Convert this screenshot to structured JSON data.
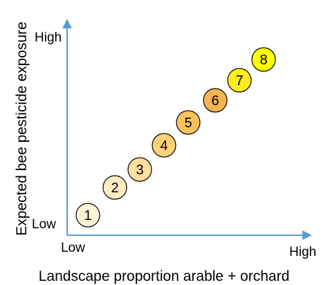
{
  "y_axis": {
    "title": "Expected bee pesticide exposure",
    "high_label": "High",
    "low_label": "Low"
  },
  "x_axis": {
    "title": "Landscape proportion arable + orchard",
    "low_label": "Low",
    "high_label": "High"
  },
  "axis_color": "#5b9bd5",
  "circles": [
    {
      "label": "1",
      "color": "#fff3d6"
    },
    {
      "label": "2",
      "color": "#ffecc2"
    },
    {
      "label": "3",
      "color": "#ffe0a0"
    },
    {
      "label": "4",
      "color": "#ffd27a"
    },
    {
      "label": "5",
      "color": "#f9c35a"
    },
    {
      "label": "6",
      "color": "#f4b450"
    },
    {
      "label": "7",
      "color": "#ffec1e"
    },
    {
      "label": "8",
      "color": "#ffff00"
    }
  ]
}
